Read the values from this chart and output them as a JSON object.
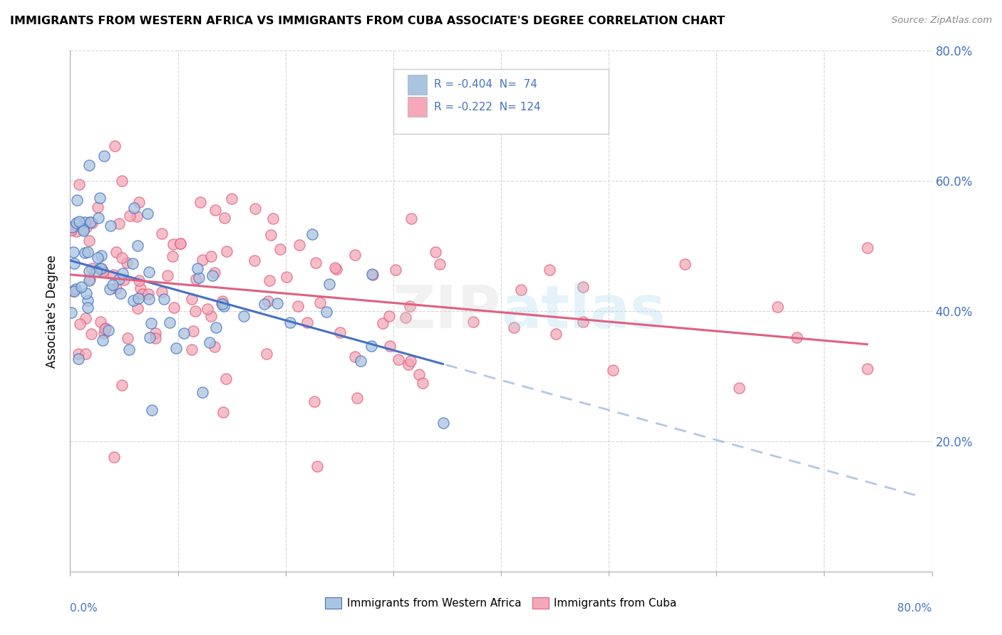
{
  "title": "IMMIGRANTS FROM WESTERN AFRICA VS IMMIGRANTS FROM CUBA ASSOCIATE'S DEGREE CORRELATION CHART",
  "source": "Source: ZipAtlas.com",
  "ylabel": "Associate's Degree",
  "legend_label1": "Immigrants from Western Africa",
  "legend_label2": "Immigrants from Cuba",
  "r1": -0.404,
  "n1": 74,
  "r2": -0.222,
  "n2": 124,
  "color1": "#a8c4e0",
  "color2": "#f4a8b8",
  "line_color1": "#4472c4",
  "line_color2": "#e06080",
  "xlim": [
    0.0,
    0.8
  ],
  "ylim": [
    0.0,
    0.8
  ],
  "ytick_labels": [
    "20.0%",
    "40.0%",
    "60.0%",
    "80.0%"
  ],
  "ytick_vals": [
    0.2,
    0.4,
    0.6,
    0.8
  ],
  "seed1": 42,
  "seed2": 99
}
